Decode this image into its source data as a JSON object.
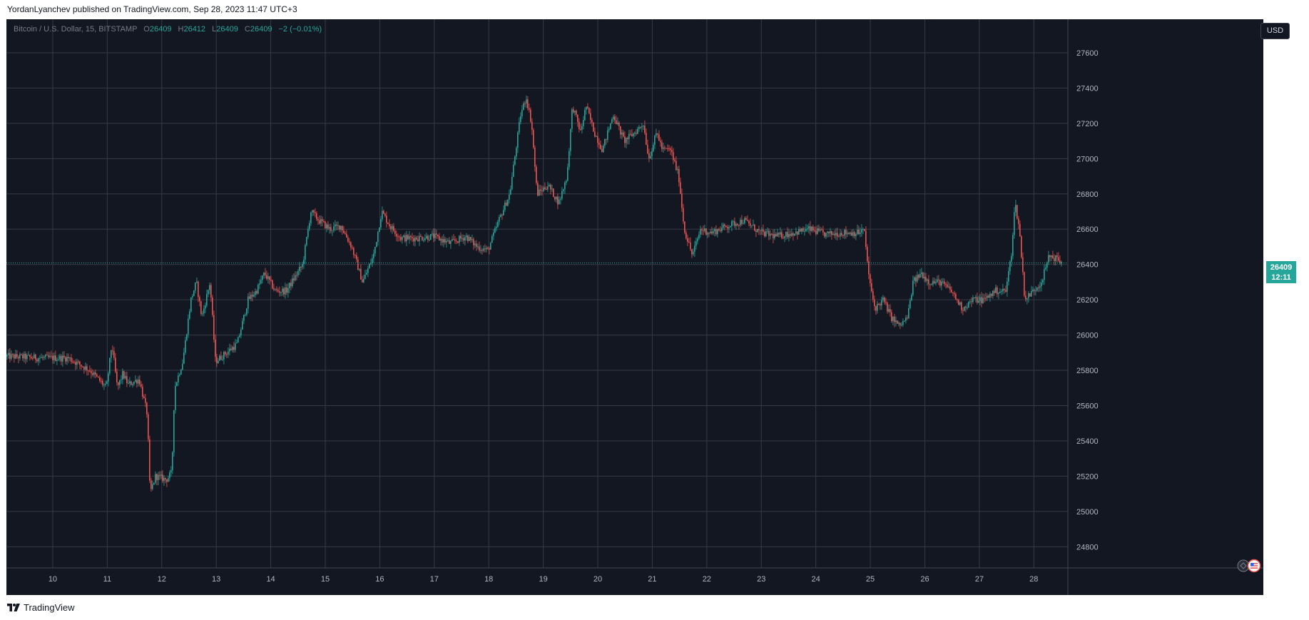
{
  "header": {
    "publisher_line": "YordanLyanchev published on TradingView.com, Sep 28, 2023 11:47 UTC+3"
  },
  "legend": {
    "symbol": "Bitcoin / U.S. Dollar, 15, BITSTAMP",
    "open_label": "O",
    "open": "26409",
    "high_label": "H",
    "high": "26412",
    "low_label": "L",
    "low": "26409",
    "close_label": "C",
    "close": "26409",
    "change": "−2 (−0.01%)"
  },
  "currency_button": "USD",
  "last_price": {
    "price": "26409",
    "countdown": "12:11"
  },
  "footer": {
    "brand": "TradingView",
    "logo_icon": "tradingview-logo-icon"
  },
  "colors": {
    "background": "#131722",
    "up": "#26a69a",
    "down": "#ef5350",
    "grid": "#2a2e39",
    "text": "#b2b5be"
  },
  "chart_data": {
    "type": "candlestick",
    "title": "",
    "xlabel": "",
    "ylabel": "",
    "ylim": [
      24680,
      27790
    ],
    "y_ticks": [
      24800,
      25000,
      25200,
      25400,
      25600,
      25800,
      26000,
      26200,
      26400,
      26600,
      26800,
      27000,
      27200,
      27400,
      27600
    ],
    "x_ticks": [
      "10",
      "11",
      "12",
      "13",
      "14",
      "15",
      "16",
      "17",
      "18",
      "19",
      "20",
      "21",
      "22",
      "23",
      "24",
      "25",
      "26",
      "27",
      "28"
    ],
    "x_range_days": [
      9.15,
      28.52
    ],
    "price_path": [
      [
        9.15,
        25880
      ],
      [
        9.8,
        25870
      ],
      [
        10.3,
        25870
      ],
      [
        10.7,
        25800
      ],
      [
        11.0,
        25700
      ],
      [
        11.1,
        25950
      ],
      [
        11.2,
        25700
      ],
      [
        11.3,
        25780
      ],
      [
        11.4,
        25720
      ],
      [
        11.6,
        25750
      ],
      [
        11.75,
        25550
      ],
      [
        11.8,
        25100
      ],
      [
        11.9,
        25200
      ],
      [
        12.1,
        25180
      ],
      [
        12.2,
        25220
      ],
      [
        12.25,
        25700
      ],
      [
        12.4,
        25850
      ],
      [
        12.55,
        26200
      ],
      [
        12.65,
        26300
      ],
      [
        12.75,
        26100
      ],
      [
        12.9,
        26300
      ],
      [
        13.0,
        25850
      ],
      [
        13.2,
        25900
      ],
      [
        13.4,
        25950
      ],
      [
        13.6,
        26200
      ],
      [
        13.75,
        26250
      ],
      [
        13.9,
        26350
      ],
      [
        14.1,
        26250
      ],
      [
        14.3,
        26250
      ],
      [
        14.6,
        26400
      ],
      [
        14.75,
        26700
      ],
      [
        14.9,
        26650
      ],
      [
        15.1,
        26600
      ],
      [
        15.3,
        26620
      ],
      [
        15.5,
        26500
      ],
      [
        15.7,
        26300
      ],
      [
        15.9,
        26450
      ],
      [
        16.05,
        26700
      ],
      [
        16.2,
        26620
      ],
      [
        16.4,
        26550
      ],
      [
        16.7,
        26550
      ],
      [
        17.0,
        26560
      ],
      [
        17.3,
        26520
      ],
      [
        17.6,
        26560
      ],
      [
        17.8,
        26500
      ],
      [
        18.0,
        26480
      ],
      [
        18.2,
        26650
      ],
      [
        18.4,
        26800
      ],
      [
        18.6,
        27250
      ],
      [
        18.7,
        27350
      ],
      [
        18.8,
        27200
      ],
      [
        18.9,
        26800
      ],
      [
        19.1,
        26850
      ],
      [
        19.3,
        26750
      ],
      [
        19.45,
        26900
      ],
      [
        19.55,
        27300
      ],
      [
        19.7,
        27150
      ],
      [
        19.8,
        27300
      ],
      [
        19.95,
        27150
      ],
      [
        20.1,
        27050
      ],
      [
        20.3,
        27250
      ],
      [
        20.5,
        27100
      ],
      [
        20.7,
        27150
      ],
      [
        20.85,
        27200
      ],
      [
        20.95,
        27000
      ],
      [
        21.1,
        27150
      ],
      [
        21.2,
        27050
      ],
      [
        21.35,
        27050
      ],
      [
        21.5,
        26900
      ],
      [
        21.6,
        26600
      ],
      [
        21.75,
        26450
      ],
      [
        21.9,
        26600
      ],
      [
        22.1,
        26580
      ],
      [
        22.4,
        26620
      ],
      [
        22.7,
        26650
      ],
      [
        23.0,
        26580
      ],
      [
        23.3,
        26560
      ],
      [
        23.6,
        26580
      ],
      [
        23.9,
        26600
      ],
      [
        24.2,
        26570
      ],
      [
        24.5,
        26580
      ],
      [
        24.8,
        26580
      ],
      [
        24.9,
        26600
      ],
      [
        25.0,
        26300
      ],
      [
        25.1,
        26150
      ],
      [
        25.25,
        26200
      ],
      [
        25.4,
        26100
      ],
      [
        25.55,
        26050
      ],
      [
        25.7,
        26100
      ],
      [
        25.8,
        26300
      ],
      [
        25.95,
        26350
      ],
      [
        26.1,
        26300
      ],
      [
        26.3,
        26300
      ],
      [
        26.5,
        26250
      ],
      [
        26.7,
        26150
      ],
      [
        26.9,
        26200
      ],
      [
        27.1,
        26200
      ],
      [
        27.3,
        26250
      ],
      [
        27.5,
        26250
      ],
      [
        27.6,
        26450
      ],
      [
        27.67,
        26750
      ],
      [
        27.75,
        26600
      ],
      [
        27.85,
        26200
      ],
      [
        28.0,
        26250
      ],
      [
        28.15,
        26300
      ],
      [
        28.3,
        26450
      ],
      [
        28.45,
        26430
      ],
      [
        28.52,
        26409
      ]
    ]
  }
}
